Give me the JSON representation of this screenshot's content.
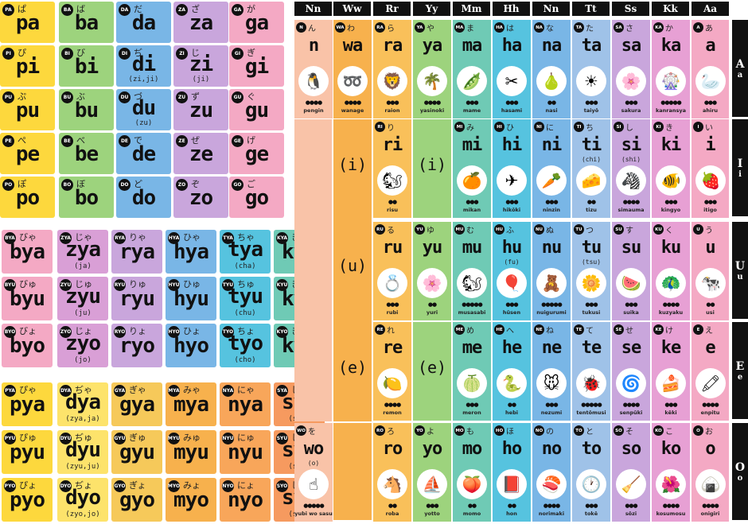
{
  "colors": {
    "orange": "#f7b14d",
    "yellow": "#fdd83d",
    "green": "#9dd37d",
    "teal": "#6fcab5",
    "cyan": "#56c3df",
    "blue": "#79b6e6",
    "purple": "#c9a6dc",
    "pink": "#f4a9c4",
    "salmon": "#f9c3a8"
  },
  "grid_p": {
    "rows": [
      [
        {
          "tag": "PA",
          "kana": "ぱ",
          "rom": "pa"
        },
        {
          "tag": "BA",
          "kana": "ば",
          "rom": "ba"
        },
        {
          "tag": "DA",
          "kana": "だ",
          "rom": "da"
        },
        {
          "tag": "ZA",
          "kana": "ざ",
          "rom": "za"
        },
        {
          "tag": "GA",
          "kana": "が",
          "rom": "ga"
        }
      ],
      [
        {
          "tag": "PI",
          "kana": "ぴ",
          "rom": "pi"
        },
        {
          "tag": "BI",
          "kana": "び",
          "rom": "bi"
        },
        {
          "tag": "DI",
          "kana": "ぢ",
          "rom": "di",
          "alt": "(zi,ji)"
        },
        {
          "tag": "ZI",
          "kana": "じ",
          "rom": "zi",
          "alt": "(ji)"
        },
        {
          "tag": "GI",
          "kana": "ぎ",
          "rom": "gi"
        }
      ],
      [
        {
          "tag": "PU",
          "kana": "ぷ",
          "rom": "pu"
        },
        {
          "tag": "BU",
          "kana": "ぶ",
          "rom": "bu"
        },
        {
          "tag": "DU",
          "kana": "づ",
          "rom": "du",
          "alt": "(zu)"
        },
        {
          "tag": "ZU",
          "kana": "ず",
          "rom": "zu"
        },
        {
          "tag": "GU",
          "kana": "ぐ",
          "rom": "gu"
        }
      ],
      [
        {
          "tag": "PE",
          "kana": "ぺ",
          "rom": "pe"
        },
        {
          "tag": "BE",
          "kana": "べ",
          "rom": "be"
        },
        {
          "tag": "DE",
          "kana": "で",
          "rom": "de"
        },
        {
          "tag": "ZE",
          "kana": "ぜ",
          "rom": "ze"
        },
        {
          "tag": "GE",
          "kana": "げ",
          "rom": "ge"
        }
      ],
      [
        {
          "tag": "PO",
          "kana": "ぽ",
          "rom": "po"
        },
        {
          "tag": "BO",
          "kana": "ぼ",
          "rom": "bo"
        },
        {
          "tag": "DO",
          "kana": "ど",
          "rom": "do"
        },
        {
          "tag": "ZO",
          "kana": "ぞ",
          "rom": "zo"
        },
        {
          "tag": "GO",
          "kana": "ご",
          "rom": "go"
        }
      ]
    ]
  },
  "grid_y1": {
    "rows": [
      [
        {
          "tag": "BYA",
          "kana": "びゃ",
          "rom": "bya"
        },
        {
          "tag": "ZYA",
          "kana": "じゃ",
          "rom": "zya",
          "alt": "(ja)"
        },
        {
          "tag": "RYA",
          "kana": "りゃ",
          "rom": "rya"
        },
        {
          "tag": "HYA",
          "kana": "ひゃ",
          "rom": "hya"
        },
        {
          "tag": "TYA",
          "kana": "ちゃ",
          "rom": "tya",
          "alt": "(cha)"
        },
        {
          "tag": "KYA",
          "kana": "きゃ",
          "rom": "kya"
        }
      ],
      [
        {
          "tag": "BYU",
          "kana": "びゅ",
          "rom": "byu"
        },
        {
          "tag": "ZYU",
          "kana": "じゅ",
          "rom": "zyu",
          "alt": "(ju)"
        },
        {
          "tag": "RYU",
          "kana": "りゅ",
          "rom": "ryu"
        },
        {
          "tag": "HYU",
          "kana": "ひゅ",
          "rom": "hyu"
        },
        {
          "tag": "TYU",
          "kana": "ちゅ",
          "rom": "tyu",
          "alt": "(chu)"
        },
        {
          "tag": "KYU",
          "kana": "きゅ",
          "rom": "kyu"
        }
      ],
      [
        {
          "tag": "BYO",
          "kana": "びょ",
          "rom": "byo"
        },
        {
          "tag": "ZYO",
          "kana": "じょ",
          "rom": "zyo",
          "alt": "(jo)"
        },
        {
          "tag": "RYO",
          "kana": "りょ",
          "rom": "ryo"
        },
        {
          "tag": "HYO",
          "kana": "ひょ",
          "rom": "hyo"
        },
        {
          "tag": "TYO",
          "kana": "ちょ",
          "rom": "tyo",
          "alt": "(cho)"
        },
        {
          "tag": "KYO",
          "kana": "きょ",
          "rom": "kyo"
        }
      ]
    ]
  },
  "grid_y2": {
    "rows": [
      [
        {
          "tag": "PYA",
          "kana": "ぴゃ",
          "rom": "pya"
        },
        {
          "tag": "DYA",
          "kana": "ぢゃ",
          "rom": "dya",
          "alt": "(zya,ja)"
        },
        {
          "tag": "GYA",
          "kana": "ぎゃ",
          "rom": "gya"
        },
        {
          "tag": "MYA",
          "kana": "みゃ",
          "rom": "mya"
        },
        {
          "tag": "NYA",
          "kana": "にゃ",
          "rom": "nya"
        },
        {
          "tag": "SYA",
          "kana": "しゃ",
          "rom": "sya",
          "alt": "(sha)"
        }
      ],
      [
        {
          "tag": "PYU",
          "kana": "ぴゅ",
          "rom": "pyu"
        },
        {
          "tag": "DYU",
          "kana": "ぢゅ",
          "rom": "dyu",
          "alt": "(zyu,ju)"
        },
        {
          "tag": "GYU",
          "kana": "ぎゅ",
          "rom": "gyu"
        },
        {
          "tag": "MYU",
          "kana": "みゅ",
          "rom": "myu"
        },
        {
          "tag": "NYU",
          "kana": "にゅ",
          "rom": "nyu"
        },
        {
          "tag": "SYU",
          "kana": "しゅ",
          "rom": "syu",
          "alt": "(shu)"
        }
      ],
      [
        {
          "tag": "PYO",
          "kana": "ぴょ",
          "rom": "pyo"
        },
        {
          "tag": "DYO",
          "kana": "ぢょ",
          "rom": "dyo",
          "alt": "(zyo,jo)"
        },
        {
          "tag": "GYO",
          "kana": "ぎょ",
          "rom": "gyo"
        },
        {
          "tag": "MYO",
          "kana": "みょ",
          "rom": "myo"
        },
        {
          "tag": "NYO",
          "kana": "にょ",
          "rom": "nyo"
        },
        {
          "tag": "SYO",
          "kana": "しょ",
          "rom": "syo",
          "alt": "(sho)"
        }
      ]
    ]
  },
  "chart": {
    "headers": [
      "Nn",
      "Ww",
      "Rr",
      "Yy",
      "Mm",
      "Hh",
      "Nn",
      "Tt",
      "Ss",
      "Kk",
      "Aa"
    ],
    "rows": [
      {
        "upper": "A",
        "lower": "a"
      },
      {
        "upper": "I",
        "lower": "i"
      },
      {
        "upper": "U",
        "lower": "u"
      },
      {
        "upper": "E",
        "lower": "e"
      },
      {
        "upper": "O",
        "lower": "o"
      }
    ],
    "standalone": {
      "i": "(i)",
      "u": "(u)",
      "e": "(e)"
    },
    "cells": [
      [
        {
          "tag": "N",
          "kana": "ん",
          "rom": "n",
          "icon": "🐧",
          "dots": "●●●●",
          "word": "pengin"
        },
        {
          "tag": "WA",
          "kana": "わ",
          "rom": "wa",
          "icon": "➿",
          "dots": "●●●●",
          "word": "wanage"
        },
        {
          "tag": "RA",
          "kana": "ら",
          "rom": "ra",
          "icon": "🦁",
          "dots": "●●●",
          "word": "raion"
        },
        {
          "tag": "YA",
          "kana": "や",
          "rom": "ya",
          "icon": "🌴",
          "dots": "●●●●",
          "word": "yasinoki"
        },
        {
          "tag": "MA",
          "kana": "ま",
          "rom": "ma",
          "icon": "🫛",
          "dots": "●●●",
          "word": "mame"
        },
        {
          "tag": "HA",
          "kana": "は",
          "rom": "ha",
          "icon": "✂",
          "dots": "●●●",
          "word": "hasami"
        },
        {
          "tag": "NA",
          "kana": "な",
          "rom": "na",
          "icon": "🍐",
          "dots": "●●",
          "word": "nasi"
        },
        {
          "tag": "TA",
          "kana": "た",
          "rom": "ta",
          "icon": "☀",
          "dots": "●●●",
          "word": "taiyō"
        },
        {
          "tag": "SA",
          "kana": "さ",
          "rom": "sa",
          "icon": "🌸",
          "dots": "●●●",
          "word": "sakura"
        },
        {
          "tag": "KA",
          "kana": "か",
          "rom": "ka",
          "icon": "🎡",
          "dots": "●●●●●",
          "word": "kanransya"
        },
        {
          "tag": "A",
          "kana": "あ",
          "rom": "a",
          "icon": "🦢",
          "dots": "●●●",
          "word": "ahiru"
        }
      ],
      [
        null,
        null,
        {
          "tag": "RI",
          "kana": "り",
          "rom": "ri",
          "icon": "🐿",
          "dots": "●●",
          "word": "risu"
        },
        null,
        {
          "tag": "MI",
          "kana": "み",
          "rom": "mi",
          "icon": "🍊",
          "dots": "●●●",
          "word": "mikan"
        },
        {
          "tag": "HI",
          "kana": "ひ",
          "rom": "hi",
          "icon": "✈",
          "dots": "●●●",
          "word": "hikōki"
        },
        {
          "tag": "NI",
          "kana": "に",
          "rom": "ni",
          "icon": "🥕",
          "dots": "●●●",
          "word": "ninzin"
        },
        {
          "tag": "TI",
          "kana": "ち",
          "rom": "ti",
          "alt": "(chi)",
          "icon": "🧀",
          "dots": "●●",
          "word": "tizu"
        },
        {
          "tag": "SI",
          "kana": "し",
          "rom": "si",
          "alt": "(shi)",
          "icon": "🦓",
          "dots": "●●●●",
          "word": "simauma"
        },
        {
          "tag": "KI",
          "kana": "き",
          "rom": "ki",
          "icon": "🐠",
          "dots": "●●●",
          "word": "kingyo"
        },
        {
          "tag": "I",
          "kana": "い",
          "rom": "i",
          "icon": "🍓",
          "dots": "●●●",
          "word": "itigo"
        }
      ],
      [
        null,
        null,
        {
          "tag": "RU",
          "kana": "る",
          "rom": "ru",
          "icon": "💍",
          "dots": "●●●",
          "word": "rubi"
        },
        {
          "tag": "YU",
          "kana": "ゆ",
          "rom": "yu",
          "icon": "🌸",
          "dots": "●●",
          "word": "yuri"
        },
        {
          "tag": "MU",
          "kana": "む",
          "rom": "mu",
          "icon": "🐿",
          "dots": "●●●●●",
          "word": "musasabi"
        },
        {
          "tag": "HU",
          "kana": "ふ",
          "rom": "hu",
          "alt": "(fu)",
          "icon": "🎈",
          "dots": "●●●",
          "word": "hūsen"
        },
        {
          "tag": "NU",
          "kana": "ぬ",
          "rom": "nu",
          "icon": "🧸",
          "dots": "●●●●●",
          "word": "nuigurumi"
        },
        {
          "tag": "TU",
          "kana": "つ",
          "rom": "tu",
          "alt": "(tsu)",
          "icon": "🌼",
          "dots": "●●●",
          "word": "tukusi"
        },
        {
          "tag": "SU",
          "kana": "す",
          "rom": "su",
          "icon": "🍉",
          "dots": "●●●",
          "word": "suika"
        },
        {
          "tag": "KU",
          "kana": "く",
          "rom": "ku",
          "icon": "🦚",
          "dots": "●●●●",
          "word": "kuzyaku"
        },
        {
          "tag": "U",
          "kana": "う",
          "rom": "u",
          "icon": "🐄",
          "dots": "●●",
          "word": "usi"
        }
      ],
      [
        null,
        null,
        {
          "tag": "RE",
          "kana": "れ",
          "rom": "re",
          "icon": "🍋",
          "dots": "●●●●",
          "word": "remon"
        },
        null,
        {
          "tag": "ME",
          "kana": "め",
          "rom": "me",
          "icon": "🍈",
          "dots": "●●●",
          "word": "meron"
        },
        {
          "tag": "HE",
          "kana": "へ",
          "rom": "he",
          "icon": "🐍",
          "dots": "●●",
          "word": "hebi"
        },
        {
          "tag": "NE",
          "kana": "ね",
          "rom": "ne",
          "icon": "🐭",
          "dots": "●●●",
          "word": "nezumi"
        },
        {
          "tag": "TE",
          "kana": "て",
          "rom": "te",
          "icon": "🐞",
          "dots": "●●●●●",
          "word": "tentōmusi"
        },
        {
          "tag": "SE",
          "kana": "せ",
          "rom": "se",
          "icon": "🌀",
          "dots": "●●●●",
          "word": "senpūki"
        },
        {
          "tag": "KE",
          "kana": "け",
          "rom": "ke",
          "icon": "🍰",
          "dots": "●●●",
          "word": "kēki"
        },
        {
          "tag": "E",
          "kana": "え",
          "rom": "e",
          "icon": "🖍",
          "dots": "●●●●",
          "word": "enpitu"
        }
      ],
      [
        {
          "tag": "WO",
          "kana": "を",
          "rom": "wo",
          "alt": "(o)",
          "icon": "☝",
          "dots": "●●●●●",
          "word": "yubi wo sasu"
        },
        null,
        {
          "tag": "RO",
          "kana": "ろ",
          "rom": "ro",
          "icon": "🐴",
          "dots": "●●",
          "word": "roba"
        },
        {
          "tag": "YO",
          "kana": "よ",
          "rom": "yo",
          "icon": "⛵",
          "dots": "●●●",
          "word": "yotto"
        },
        {
          "tag": "MO",
          "kana": "も",
          "rom": "mo",
          "icon": "🍑",
          "dots": "●●",
          "word": "momo"
        },
        {
          "tag": "HO",
          "kana": "ほ",
          "rom": "ho",
          "icon": "📕",
          "dots": "●●",
          "word": "hon"
        },
        {
          "tag": "NO",
          "kana": "の",
          "rom": "no",
          "icon": "🍣",
          "dots": "●●●●",
          "word": "norimaki"
        },
        {
          "tag": "TO",
          "kana": "と",
          "rom": "to",
          "icon": "🕐",
          "dots": "●●●",
          "word": "tokē"
        },
        {
          "tag": "SO",
          "kana": "そ",
          "rom": "so",
          "icon": "🧹",
          "dots": "●●●",
          "word": "sōzi"
        },
        {
          "tag": "KO",
          "kana": "こ",
          "rom": "ko",
          "icon": "🌺",
          "dots": "●●●●",
          "word": "kosumosu"
        },
        {
          "tag": "O",
          "kana": "お",
          "rom": "o",
          "icon": "🍙",
          "dots": "●●●●",
          "word": "onigiri"
        }
      ]
    ]
  }
}
